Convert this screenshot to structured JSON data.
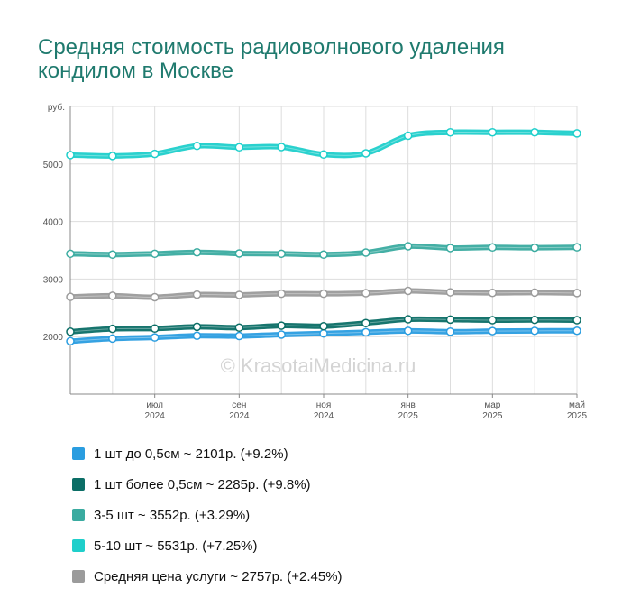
{
  "title": "Средняя стоимость радиоволнового удаления кондилом в Москве",
  "watermark": "© KrasotaiMedicina.ru",
  "chart_data": {
    "type": "line",
    "y_unit": "руб.",
    "ylim": [
      1000,
      6000
    ],
    "y_ticks": [
      2000,
      3000,
      4000,
      5000
    ],
    "grid": true,
    "x": [
      "2024-05",
      "2024-06",
      "2024-07",
      "2024-08",
      "2024-09",
      "2024-10",
      "2024-11",
      "2024-12",
      "2025-01",
      "2025-02",
      "2025-03",
      "2025-04",
      "2025-05"
    ],
    "x_tick_labels": [
      {
        "month": "июл",
        "year": "2024"
      },
      {
        "month": "сен",
        "year": "2024"
      },
      {
        "month": "ноя",
        "year": "2024"
      },
      {
        "month": "янв",
        "year": "2025"
      },
      {
        "month": "мар",
        "year": "2025"
      },
      {
        "month": "май",
        "year": "2025"
      }
    ],
    "series": [
      {
        "name": "1 шт до 0,5см ~ 2101р. (+9.2%)",
        "color": "#2a9de0",
        "values": [
          1920,
          1965,
          1985,
          2015,
          2010,
          2035,
          2055,
          2075,
          2100,
          2085,
          2095,
          2100,
          2101
        ]
      },
      {
        "name": "1 шт более 0,5см ~ 2285р. (+9.8%)",
        "color": "#0b6e66",
        "values": [
          2085,
          2135,
          2140,
          2170,
          2155,
          2190,
          2180,
          2235,
          2300,
          2295,
          2285,
          2290,
          2285
        ]
      },
      {
        "name": "3-5 шт ~ 3552р. (+3.29%)",
        "color": "#3aaba0",
        "values": [
          3440,
          3425,
          3440,
          3465,
          3445,
          3440,
          3425,
          3460,
          3570,
          3540,
          3550,
          3545,
          3552
        ]
      },
      {
        "name": "5-10 шт ~ 5531р. (+7.25%)",
        "color": "#1fcfcb",
        "values": [
          5155,
          5140,
          5175,
          5315,
          5290,
          5295,
          5165,
          5185,
          5490,
          5550,
          5550,
          5550,
          5531
        ]
      },
      {
        "name": "Средняя цена услуги ~ 2757р. (+2.45%)",
        "color": "#9b9b9b",
        "values": [
          2690,
          2710,
          2685,
          2730,
          2725,
          2745,
          2745,
          2755,
          2795,
          2770,
          2760,
          2765,
          2757
        ]
      }
    ]
  }
}
